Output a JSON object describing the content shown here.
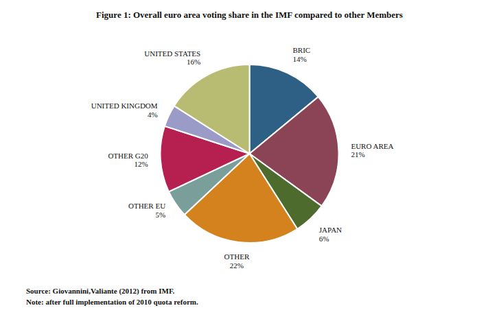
{
  "chart_data": {
    "type": "pie",
    "title": "Figure 1: Overall euro area voting share in the IMF compared to other Members",
    "categories": [
      "BRIC",
      "EURO AREA",
      "JAPAN",
      "OTHER",
      "OTHER EU",
      "OTHER G20",
      "UNITED KINGDOM",
      "UNITED STATES"
    ],
    "values": [
      14,
      21,
      6,
      22,
      5,
      12,
      4,
      16
    ],
    "value_labels": [
      "14%",
      "21%",
      "6%",
      "22%",
      "5%",
      "12%",
      "4%",
      "16%"
    ],
    "colors": [
      "#2e6085",
      "#8b4455",
      "#4e6b2e",
      "#d4821e",
      "#7a9e9a",
      "#b52050",
      "#9b9bc8",
      "#b8bb72"
    ],
    "data_labels": true,
    "annotations": [
      "Source: Giovannini,Valiante (2012) from IMF.",
      "Note: after full implementation of 2010 quota reform."
    ]
  }
}
